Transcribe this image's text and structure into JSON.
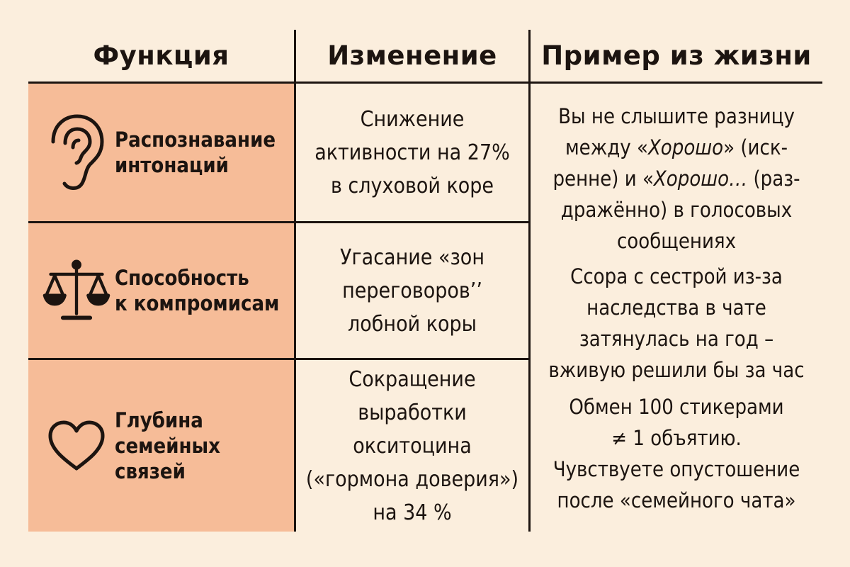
{
  "columns": {
    "function": "Функция",
    "change": "Изменение",
    "example": "Пример из жизни"
  },
  "rows": [
    {
      "icon": "ear-icon",
      "function": "Распознавание\nинтонаций",
      "change": "Снижение\nактивности на 27%\nв слуховой коре"
    },
    {
      "icon": "scales-icon",
      "function": "Способность\nк компромисам",
      "change": "Угасание «зон\nпереговоров’’\nлобной коры"
    },
    {
      "icon": "heart-icon",
      "function": "Глубина\nсемейных\nсвязей",
      "change": "Сокращение\nвыработки\nокситоцина\n(«гормона доверия»)\nна 34 %"
    }
  ],
  "examples": [
    {
      "segments": [
        {
          "t": "Вы не слышите разницу",
          "br": true
        },
        {
          "t": "между «"
        },
        {
          "t": "Хорошо",
          "i": true
        },
        {
          "t": "» (иск-",
          "br": true
        },
        {
          "t": "ренне) и «"
        },
        {
          "t": "Хорошо…",
          "i": true
        },
        {
          "t": " (раз-",
          "br": true
        },
        {
          "t": "дражённо) в голосовых",
          "br": true
        },
        {
          "t": "сообщениях"
        }
      ]
    },
    {
      "segments": [
        {
          "t": "Ссора с сестрой из-за",
          "br": true
        },
        {
          "t": "наследства в чате",
          "br": true
        },
        {
          "t": "затянулась на год –",
          "br": true
        },
        {
          "t": "вживую решили бы за час"
        }
      ]
    },
    {
      "segments": [
        {
          "t": "Обмен 100 стикерами",
          "br": true
        },
        {
          "t": "≠ 1 объятию.",
          "br": true
        },
        {
          "t": "Чувствуете опустошение",
          "br": true
        },
        {
          "t": "после «семейного чата»"
        }
      ]
    }
  ]
}
